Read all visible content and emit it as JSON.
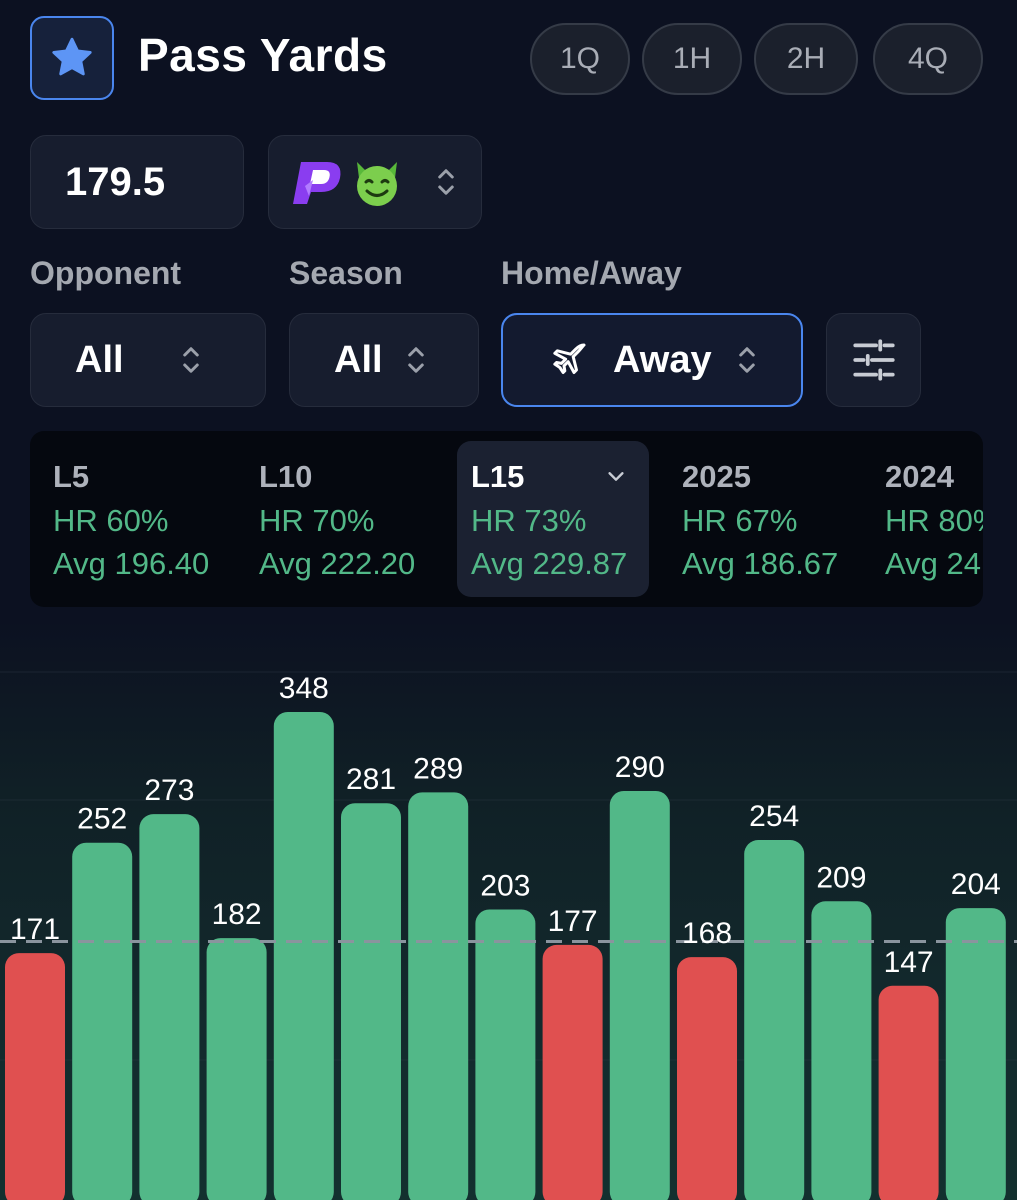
{
  "header": {
    "title": "Pass Yards",
    "periods": [
      "1Q",
      "1H",
      "2H",
      "4Q"
    ]
  },
  "line": {
    "value": "179.5"
  },
  "book": {
    "logo": "p-logo-icon",
    "emoji": "😈"
  },
  "filters": {
    "opponent": {
      "label": "Opponent",
      "value": "All"
    },
    "season": {
      "label": "Season",
      "value": "All"
    },
    "home_away": {
      "label": "Home/Away",
      "value": "Away"
    }
  },
  "stats": [
    {
      "name": "L5",
      "hr": "HR 60%",
      "avg": "Avg 196.40"
    },
    {
      "name": "L10",
      "hr": "HR 70%",
      "avg": "Avg 222.20"
    },
    {
      "name": "L15",
      "hr": "HR 73%",
      "avg": "Avg 229.87",
      "selected": true
    },
    {
      "name": "2025",
      "hr": "HR 67%",
      "avg": "Avg 186.67"
    },
    {
      "name": "2024",
      "hr": "HR 80%",
      "avg": "Avg 24"
    }
  ],
  "colors": {
    "accent": "#4a86ee",
    "hit": "#52b888",
    "miss": "#e05050",
    "background": "#0c1121"
  },
  "chart_data": {
    "type": "bar",
    "values": [
      171,
      252,
      273,
      182,
      348,
      281,
      289,
      203,
      177,
      290,
      168,
      254,
      209,
      147,
      204
    ],
    "line": 179.5,
    "ylim": [
      0,
      370
    ]
  }
}
